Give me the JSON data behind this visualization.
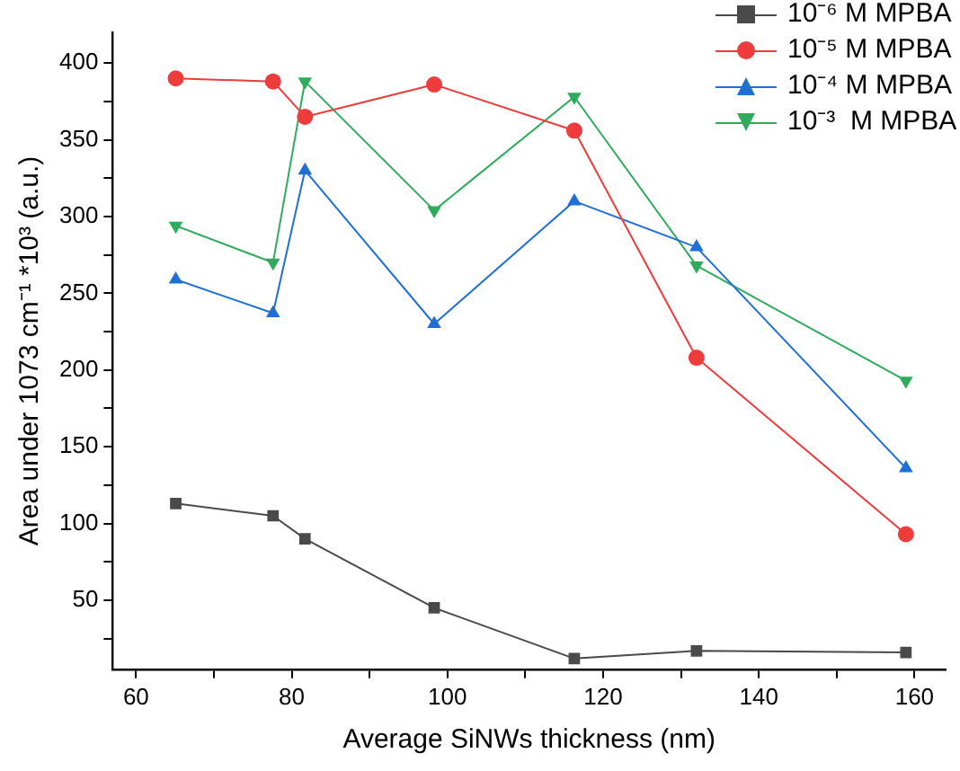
{
  "chart_data": {
    "type": "line",
    "xlabel": "Average SiNWs thickness (nm)",
    "ylabel": "Area under 1073 cm⁻¹ *10³ (a.u.)",
    "x": [
      65.1,
      77.6,
      81.7,
      98.3,
      116.3,
      132.0,
      158.9
    ],
    "series": [
      {
        "name": "10⁻⁶ M MPBA",
        "color": "#4a4a4a",
        "marker": "square",
        "values": [
          113,
          105,
          90,
          45,
          12,
          17,
          16
        ]
      },
      {
        "name": "10⁻⁵ M MPBA",
        "color": "#ee3b3b",
        "marker": "circle",
        "values": [
          390,
          388,
          365,
          386,
          356,
          208,
          93
        ]
      },
      {
        "name": "10⁻⁴ M MPBA",
        "color": "#1f6fd6",
        "marker": "triangle",
        "values": [
          259,
          237,
          330,
          230,
          310,
          280,
          136
        ]
      },
      {
        "name": "10⁻³  M MPBA",
        "color": "#2eac5c",
        "marker": "triangle-down",
        "values": [
          294,
          270,
          388,
          304,
          378,
          268,
          193
        ]
      }
    ],
    "xlim": [
      57,
      164
    ],
    "xticks": [
      60,
      {
        "value": 70,
        "label": null
      },
      80,
      {
        "value": 90,
        "label": null
      },
      100,
      {
        "value": 110,
        "label": null
      },
      120,
      {
        "value": 130,
        "label": null
      },
      140,
      {
        "value": 150,
        "label": null
      },
      160
    ],
    "ylim": [
      5,
      420
    ],
    "yticks": [
      {
        "value": 25,
        "label": null
      },
      50,
      {
        "value": 75,
        "label": null
      },
      100,
      {
        "value": 125,
        "label": null
      },
      150,
      {
        "value": 175,
        "label": null
      },
      200,
      {
        "value": 225,
        "label": null
      },
      250,
      {
        "value": 275,
        "label": null
      },
      300,
      {
        "value": 325,
        "label": null
      },
      350,
      {
        "value": 375,
        "label": null
      },
      400
    ],
    "grid": false,
    "legend": "top right",
    "line_style": "solid"
  }
}
